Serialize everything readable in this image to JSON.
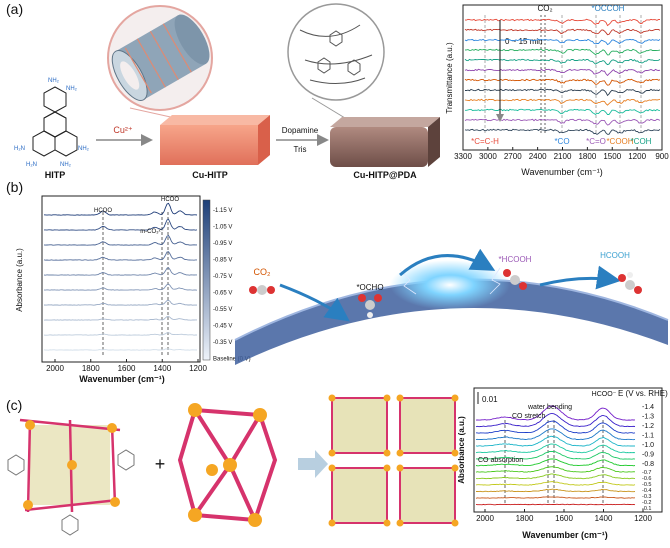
{
  "panel_a": {
    "label": "(a)",
    "hitp": "HITP",
    "reagent": "Cu²⁺",
    "cu_hitp": "Cu-HITP",
    "dopamine": "Dopamine",
    "tris": "Tris",
    "product": "Cu-HITP@PDA",
    "spectrum": {
      "y_label": "Transmittance (a.u.)",
      "x_label": "Wavenumber (cm⁻¹)",
      "x_ticks": [
        3300,
        3000,
        2700,
        2400,
        2100,
        1800,
        1500,
        1200,
        900
      ],
      "co2": "CO₂",
      "time": "0 ~ 15 min",
      "top_annotation": "*OCCOH",
      "annotations": [
        "*C=C-H",
        "*CO",
        "*C=O",
        "*COOH",
        "*COH"
      ]
    }
  },
  "panel_b": {
    "label": "(b)",
    "spectrum": {
      "y_label": "Absorbance (a.u.)",
      "x_label": "Wavenumber (cm⁻¹)",
      "x_ticks": [
        2000,
        1800,
        1600,
        1400,
        1200
      ],
      "annotations": [
        "HCOO",
        "m-CO₃²⁻",
        "HCOO"
      ],
      "potentials": [
        "-1.15 V",
        "-1.05 V",
        "-0.95 V",
        "-0.85 V",
        "-0.75 V",
        "-0.65 V",
        "-0.55 V",
        "-0.45 V",
        "-0.35 V",
        "Baseline (0 V)"
      ]
    },
    "scheme": [
      "CO₂",
      "*OCHO",
      "*HCOOH",
      "HCOOH"
    ]
  },
  "panel_c": {
    "label": "(c)",
    "plus": "+",
    "spectrum": {
      "y_label": "Absorbance (a.u.)",
      "x_label": "Wavenumber (cm⁻¹)",
      "x_ticks": [
        2000,
        1800,
        1600,
        1400,
        1200
      ],
      "scale": "0.01",
      "annotations": [
        "CO absorption",
        "CO stretch",
        "water bending",
        "HCOO⁻"
      ],
      "potential_title": "E (V vs. RHE)",
      "potentials": [
        "-1.4",
        "-1.3",
        "-1.2",
        "-1.1",
        "-1.0",
        "-0.9",
        "-0.8",
        "-0.7",
        "-0.6",
        "-0.5",
        "-0.4",
        "-0.3",
        "-0.2",
        "-0.1"
      ]
    }
  }
}
